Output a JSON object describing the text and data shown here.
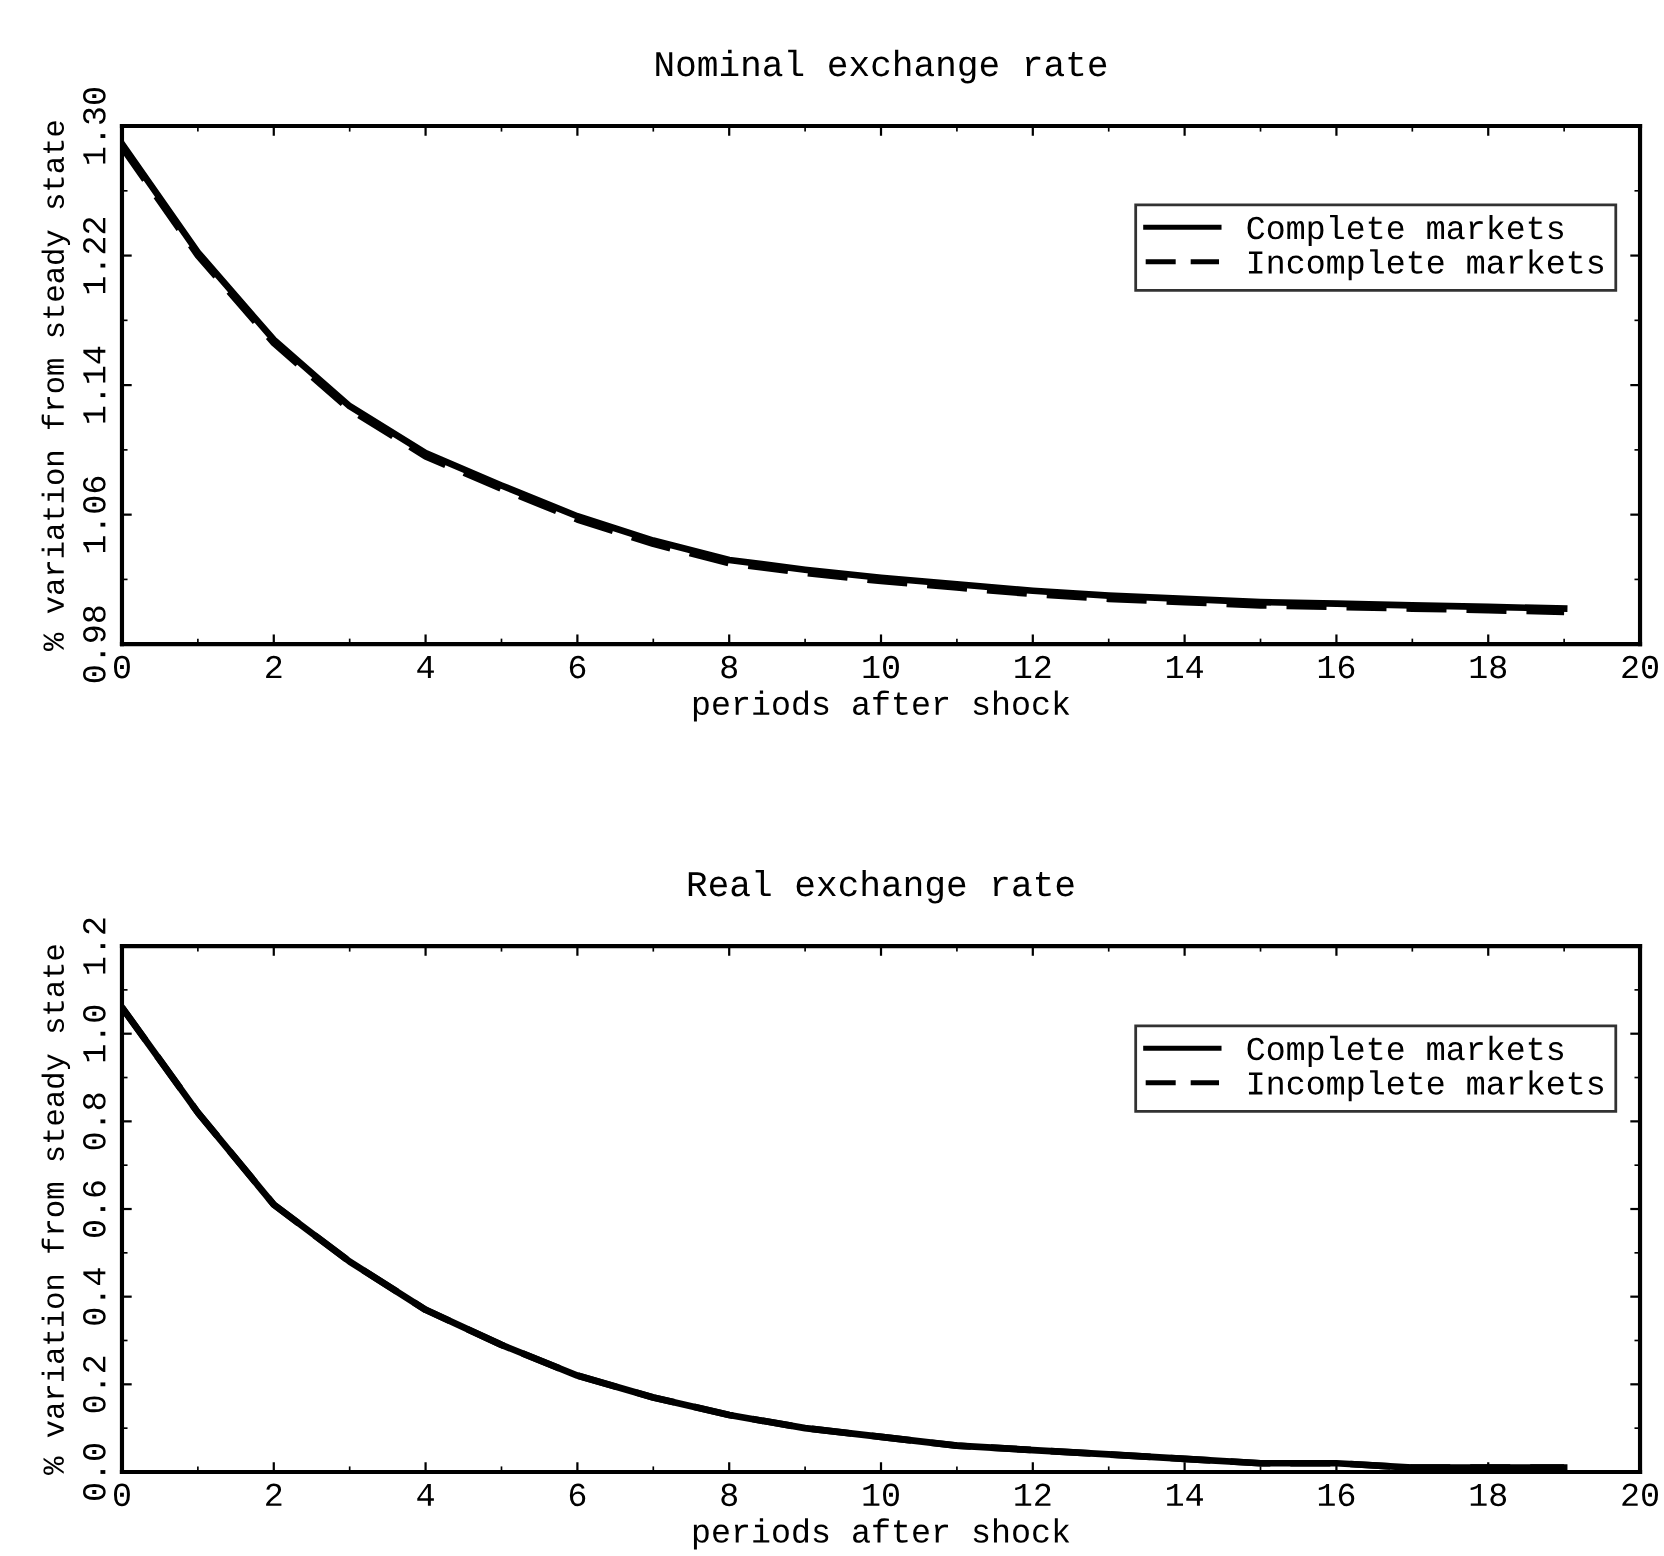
{
  "chart_data": [
    {
      "type": "line",
      "title": "Nominal exchange rate",
      "xlabel": "periods after shock",
      "ylabel": "% variation from steady state",
      "x": [
        0,
        1,
        2,
        3,
        4,
        5,
        6,
        7,
        8,
        9,
        10,
        11,
        12,
        13,
        14,
        15,
        16,
        17,
        18,
        19
      ],
      "series": [
        {
          "name": "Complete markets",
          "color": "#000000",
          "line_style": "solid",
          "values": [
            1.289,
            1.222,
            1.168,
            1.127,
            1.098,
            1.078,
            1.059,
            1.044,
            1.032,
            1.026,
            1.021,
            1.017,
            1.013,
            1.01,
            1.008,
            1.006,
            1.005,
            1.004,
            1.003,
            1.002
          ]
        },
        {
          "name": "Incomplete markets",
          "color": "#000000",
          "line_style": "dashed",
          "values": [
            1.287,
            1.22,
            1.166,
            1.125,
            1.096,
            1.076,
            1.057,
            1.042,
            1.03,
            1.024,
            1.019,
            1.015,
            1.011,
            1.008,
            1.006,
            1.004,
            1.003,
            1.002,
            1.001,
            1.0
          ]
        }
      ],
      "xlim": [
        0,
        20
      ],
      "xticks": [
        0,
        2,
        4,
        6,
        8,
        10,
        12,
        14,
        16,
        18,
        20
      ],
      "ylim": [
        0.98,
        1.3
      ],
      "yticks": [
        {
          "value": 0.98,
          "label": "0.98"
        },
        1.06,
        1.14,
        1.22,
        {
          "value": 1.3,
          "label": "1.30"
        }
      ],
      "legend": "top right",
      "grid": false
    },
    {
      "type": "line",
      "title": "Real exchange rate",
      "xlabel": "periods after shock",
      "ylabel": "% variation from steady state",
      "x": [
        0,
        1,
        2,
        3,
        4,
        5,
        6,
        7,
        8,
        9,
        10,
        11,
        12,
        13,
        14,
        15,
        16,
        17,
        18,
        19
      ],
      "series": [
        {
          "name": "Complete markets",
          "color": "#000000",
          "line_style": "solid",
          "values": [
            1.06,
            0.82,
            0.61,
            0.48,
            0.37,
            0.29,
            0.22,
            0.17,
            0.13,
            0.1,
            0.08,
            0.06,
            0.05,
            0.04,
            0.03,
            0.02,
            0.02,
            0.01,
            0.01,
            0.01
          ]
        },
        {
          "name": "Incomplete markets",
          "color": "#000000",
          "line_style": "dashed",
          "values": [
            1.06,
            0.82,
            0.61,
            0.48,
            0.37,
            0.29,
            0.22,
            0.17,
            0.13,
            0.1,
            0.08,
            0.06,
            0.05,
            0.04,
            0.03,
            0.02,
            0.02,
            0.01,
            0.01,
            0.01
          ]
        }
      ],
      "xlim": [
        0,
        20
      ],
      "xticks": [
        0,
        2,
        4,
        6,
        8,
        10,
        12,
        14,
        16,
        18,
        20
      ],
      "ylim": [
        0.0,
        1.2
      ],
      "yticks": [
        {
          "value": 0.0,
          "label": "0.0"
        },
        0.2,
        0.4,
        0.6,
        0.8,
        {
          "value": 1.0,
          "label": "1.0"
        },
        1.2
      ],
      "legend": "top right",
      "grid": false
    }
  ]
}
